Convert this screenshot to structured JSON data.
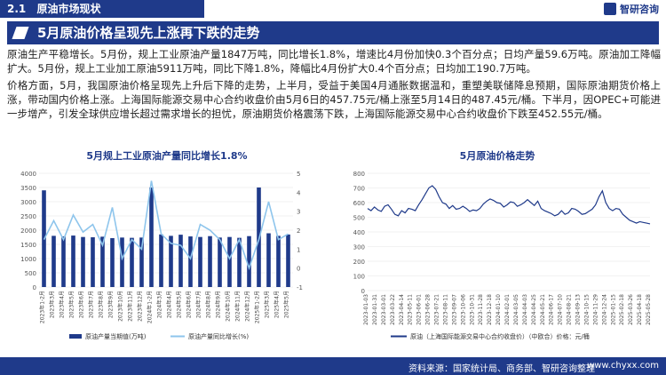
{
  "header": {
    "section_num": "2.1",
    "section_title": "原油市场现状",
    "brand_name": "智研咨询"
  },
  "banner": {
    "title": "5月原油价格呈现先上涨再下跌的走势"
  },
  "paragraphs": {
    "p1": "原油生产平稳增长。5月份，规上工业原油产量1847万吨，同比增长1.8%，增速比4月份加快0.3个百分点；日均产量59.6万吨。原油加工降幅扩大。5月份，规上工业加工原油5911万吨，同比下降1.8%，降幅比4月份扩大0.4个百分点；日均加工190.7万吨。",
    "p2": "价格方面，5月，我国原油价格呈现先上升后下降的走势，上半月，受益于美国4月通胀数据温和，重塑美联储降息预期，国际原油期货价格上涨，带动国内价格上涨。上海国际能源交易中心合约收盘价由5月6日的457.75元/桶上涨至5月14日的487.45元/桶。下半月，因OPEC+可能进一步增产，引发全球供应增长超过需求增长的担忧，原油期货价格震荡下跌，上海国际能源交易中心合约收盘价下跌至452.55元/桶。"
  },
  "chart_data": [
    {
      "type": "bar+line",
      "title": "5月规上工业原油产量同比增长1.8%",
      "categories": [
        "2023年1-2月",
        "2023年3月",
        "2023年4月",
        "2023年5月",
        "2023年6月",
        "2023年7月",
        "2023年8月",
        "2023年9月",
        "2023年10月",
        "2023年11月",
        "2023年12月",
        "2024年1-2月",
        "2024年3月",
        "2024年4月",
        "2024年5月",
        "2024年6月",
        "2024年7月",
        "2024年8月",
        "2024年9月",
        "2024年10月",
        "2024年11月",
        "2024年12月",
        "2025年1-2月",
        "2025年3月",
        "2025年4月",
        "2025年5月"
      ],
      "series": [
        {
          "name": "原油产量当期值(万吨)",
          "axis": "left",
          "type": "bar",
          "color": "#1f3a8a",
          "values": [
            3400,
            1800,
            1780,
            1810,
            1760,
            1750,
            1770,
            1720,
            1740,
            1730,
            1740,
            3500,
            1850,
            1800,
            1840,
            1780,
            1760,
            1790,
            1740,
            1760,
            1730,
            1790,
            3500,
            1890,
            1800,
            1847
          ]
        },
        {
          "name": "原油产量同比增长(%)",
          "axis": "right",
          "type": "line",
          "color": "#8ec5ec",
          "values": [
            1.5,
            2.5,
            1.5,
            2.8,
            1.9,
            2.3,
            1.2,
            3.2,
            0.5,
            1.5,
            1.0,
            4.6,
            1.8,
            1.3,
            1.2,
            0.5,
            2.3,
            2.0,
            1.5,
            0.5,
            1.5,
            0.0,
            1.5,
            3.5,
            1.5,
            1.8
          ]
        }
      ],
      "y_left": {
        "min": 0,
        "max": 4000,
        "ticks": [
          0,
          500,
          1000,
          1500,
          2000,
          2500,
          3000,
          3500,
          4000
        ]
      },
      "y_right": {
        "min": -1,
        "max": 5,
        "ticks": [
          -1,
          0,
          1,
          2,
          3,
          4,
          5
        ]
      },
      "legend": [
        "原油产量当期值(万吨)",
        "原油产量同比增长(%)"
      ],
      "legend_position": "bottom"
    },
    {
      "type": "line",
      "title": "5月原油价格走势",
      "series_name": "原油（上海国际能源交易中心合约收盘价）（中欧合）价格：元/桶",
      "y": {
        "min": 0,
        "max": 800,
        "ticks": [
          0,
          100,
          200,
          300,
          400,
          500,
          600,
          700,
          800
        ]
      },
      "x_labels": [
        "2023-01-03",
        "2023-01-31",
        "2023-03-01",
        "2023-03-22",
        "2023-04-14",
        "2023-05-11",
        "2023-06-01",
        "2023-06-28",
        "2023-07-21",
        "2023-08-11",
        "2023-09-07",
        "2023-10-06",
        "2023-10-31",
        "2023-11-28",
        "2023-12-18",
        "2024-01-10",
        "2024-02-01",
        "2024-03-05",
        "2024-04-03",
        "2024-04-25",
        "2024-05-21",
        "2024-06-17",
        "2024-07-10",
        "2024-08-21",
        "2024-09-13",
        "2024-10-15",
        "2024-11-29",
        "2024-12-24",
        "2025-01-15",
        "2025-02-18",
        "2025-03-26",
        "2025-04-18",
        "2025-05-28"
      ],
      "values": [
        560,
        545,
        570,
        550,
        540,
        575,
        585,
        555,
        520,
        510,
        545,
        530,
        560,
        555,
        545,
        585,
        620,
        660,
        700,
        715,
        690,
        640,
        600,
        590,
        560,
        580,
        555,
        560,
        575,
        560,
        540,
        550,
        545,
        560,
        590,
        610,
        625,
        615,
        600,
        595,
        570,
        585,
        605,
        600,
        575,
        585,
        600,
        620,
        600,
        580,
        610,
        560,
        545,
        535,
        525,
        510,
        520,
        545,
        520,
        530,
        560,
        555,
        540,
        520,
        525,
        540,
        555,
        585,
        640,
        680,
        600,
        560,
        545,
        560,
        555,
        520,
        500,
        480,
        470,
        460,
        470,
        465,
        460,
        455
      ]
    }
  ],
  "footer": {
    "source": "资料来源：国家统计局、商务部、智研咨询整理",
    "url": "www.chyxx.com"
  }
}
